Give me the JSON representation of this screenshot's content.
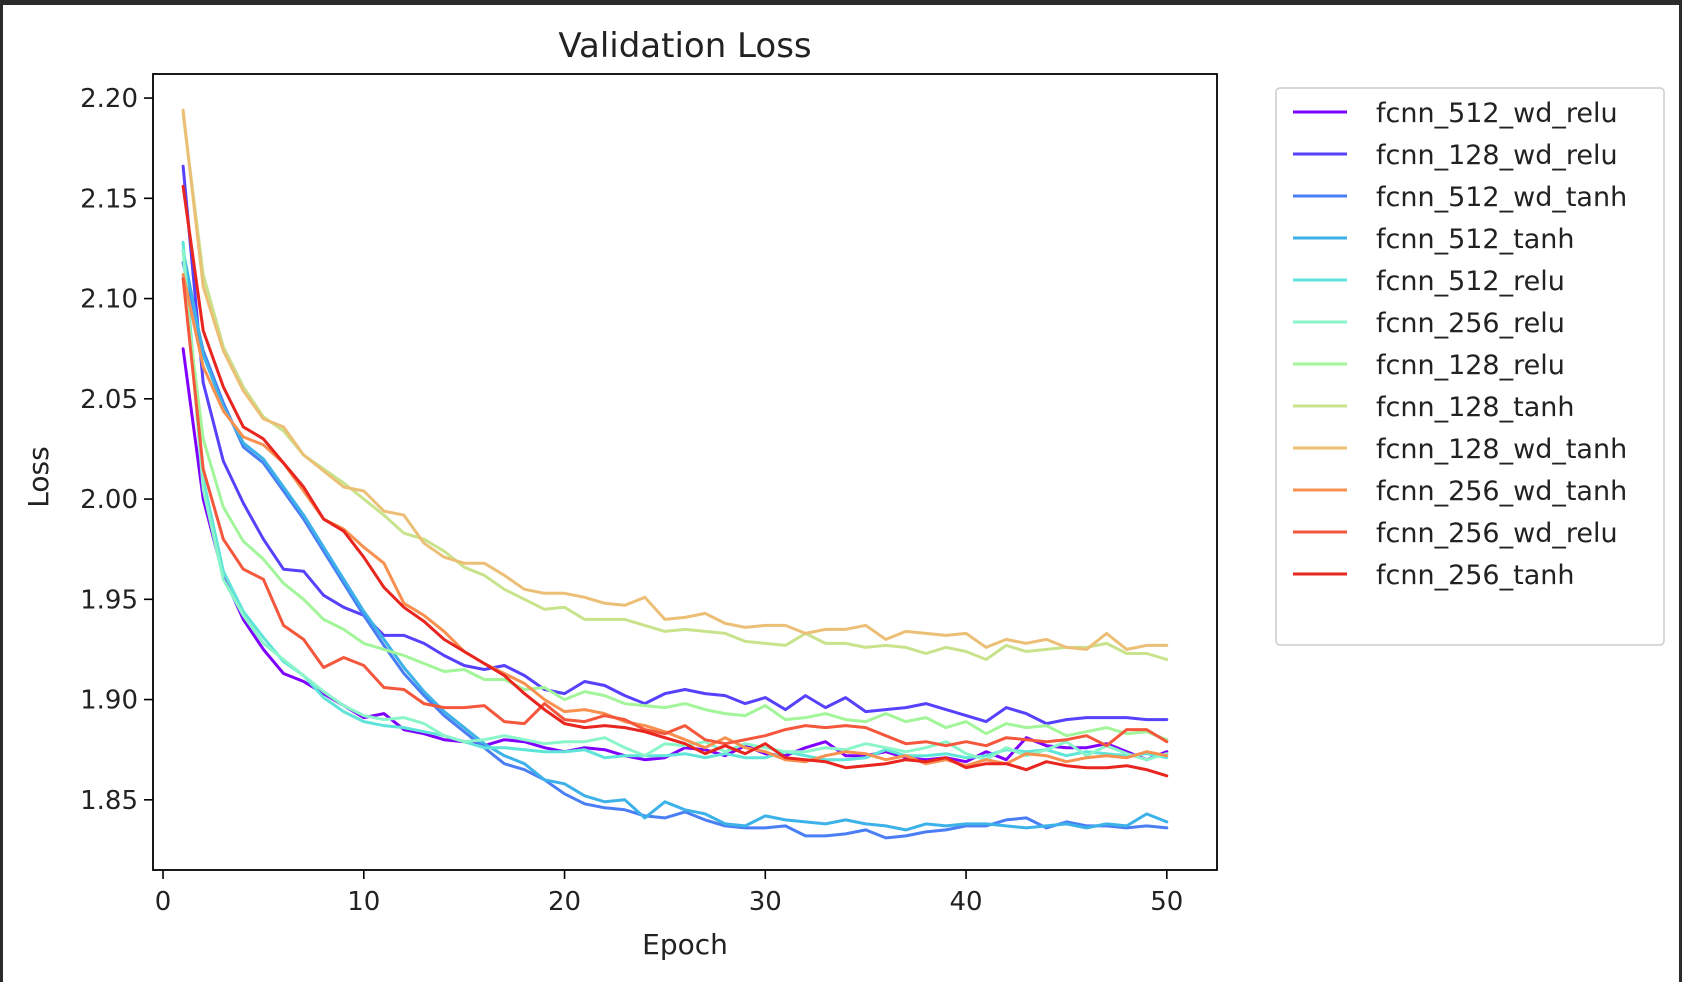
{
  "chart_data": {
    "type": "line",
    "title": "Validation Loss",
    "xlabel": "Epoch",
    "ylabel": "Loss",
    "xlim": [
      -0.5,
      52.5
    ],
    "ylim": [
      1.815,
      2.212
    ],
    "xticks": [
      0,
      10,
      20,
      30,
      40,
      50
    ],
    "yticks": [
      1.85,
      1.9,
      1.95,
      2.0,
      2.05,
      2.1,
      2.15,
      2.2
    ],
    "xtick_labels": [
      "0",
      "10",
      "20",
      "30",
      "40",
      "50"
    ],
    "ytick_labels": [
      "1.85",
      "1.90",
      "1.95",
      "2.00",
      "2.05",
      "2.10",
      "2.15",
      "2.20"
    ],
    "grid": false,
    "legend_position": "outside-right",
    "x": [
      1,
      2,
      3,
      4,
      5,
      6,
      7,
      8,
      9,
      10,
      11,
      12,
      13,
      14,
      15,
      16,
      17,
      18,
      19,
      20,
      21,
      22,
      23,
      24,
      25,
      26,
      27,
      28,
      29,
      30,
      31,
      32,
      33,
      34,
      35,
      36,
      37,
      38,
      39,
      40,
      41,
      42,
      43,
      44,
      45,
      46,
      47,
      48,
      49,
      50
    ],
    "series": [
      {
        "name": "fcnn_512_wd_relu",
        "color": "#7f00ff",
        "values": [
          2.075,
          2.0,
          1.962,
          1.94,
          1.925,
          1.913,
          1.909,
          1.903,
          1.897,
          1.891,
          1.893,
          1.885,
          1.883,
          1.88,
          1.879,
          1.877,
          1.88,
          1.879,
          1.876,
          1.874,
          1.876,
          1.875,
          1.872,
          1.87,
          1.871,
          1.876,
          1.875,
          1.872,
          1.877,
          1.873,
          1.872,
          1.876,
          1.879,
          1.872,
          1.872,
          1.874,
          1.871,
          1.87,
          1.871,
          1.869,
          1.874,
          1.87,
          1.881,
          1.877,
          1.876,
          1.876,
          1.878,
          1.874,
          1.87,
          1.874
        ]
      },
      {
        "name": "fcnn_128_wd_relu",
        "color": "#5641fd",
        "values": [
          2.166,
          2.058,
          2.019,
          1.998,
          1.98,
          1.965,
          1.964,
          1.952,
          1.946,
          1.942,
          1.932,
          1.932,
          1.928,
          1.922,
          1.917,
          1.915,
          1.917,
          1.912,
          1.905,
          1.903,
          1.909,
          1.907,
          1.902,
          1.898,
          1.903,
          1.905,
          1.903,
          1.902,
          1.898,
          1.901,
          1.895,
          1.902,
          1.896,
          1.901,
          1.894,
          1.895,
          1.896,
          1.898,
          1.895,
          1.892,
          1.889,
          1.896,
          1.893,
          1.888,
          1.89,
          1.891,
          1.891,
          1.891,
          1.89,
          1.89
        ]
      },
      {
        "name": "fcnn_512_wd_tanh",
        "color": "#4a7ef5",
        "values": [
          2.118,
          2.074,
          2.048,
          2.026,
          2.018,
          2.004,
          1.99,
          1.974,
          1.958,
          1.942,
          1.927,
          1.913,
          1.902,
          1.892,
          1.884,
          1.876,
          1.868,
          1.865,
          1.86,
          1.853,
          1.848,
          1.846,
          1.845,
          1.842,
          1.841,
          1.844,
          1.84,
          1.837,
          1.836,
          1.836,
          1.837,
          1.832,
          1.832,
          1.833,
          1.835,
          1.831,
          1.832,
          1.834,
          1.835,
          1.837,
          1.837,
          1.84,
          1.841,
          1.836,
          1.839,
          1.837,
          1.837,
          1.836,
          1.837,
          1.836
        ]
      },
      {
        "name": "fcnn_512_tanh",
        "color": "#3db2e8",
        "values": [
          2.124,
          2.072,
          2.046,
          2.028,
          2.02,
          2.006,
          1.992,
          1.976,
          1.96,
          1.944,
          1.93,
          1.916,
          1.904,
          1.894,
          1.886,
          1.878,
          1.872,
          1.868,
          1.86,
          1.858,
          1.852,
          1.849,
          1.85,
          1.841,
          1.849,
          1.845,
          1.843,
          1.838,
          1.837,
          1.842,
          1.84,
          1.839,
          1.838,
          1.84,
          1.838,
          1.837,
          1.835,
          1.838,
          1.837,
          1.838,
          1.838,
          1.837,
          1.836,
          1.837,
          1.838,
          1.836,
          1.838,
          1.837,
          1.843,
          1.839
        ]
      },
      {
        "name": "fcnn_512_relu",
        "color": "#5ee4d8",
        "values": [
          2.128,
          2.01,
          1.964,
          1.944,
          1.931,
          1.919,
          1.912,
          1.901,
          1.894,
          1.889,
          1.887,
          1.886,
          1.884,
          1.882,
          1.879,
          1.876,
          1.876,
          1.875,
          1.874,
          1.874,
          1.875,
          1.871,
          1.872,
          1.872,
          1.872,
          1.873,
          1.871,
          1.873,
          1.871,
          1.871,
          1.874,
          1.872,
          1.87,
          1.87,
          1.871,
          1.875,
          1.872,
          1.872,
          1.873,
          1.871,
          1.872,
          1.875,
          1.874,
          1.875,
          1.872,
          1.874,
          1.873,
          1.872,
          1.873,
          1.871
        ]
      },
      {
        "name": "fcnn_256_relu",
        "color": "#8af5c9",
        "values": [
          2.124,
          2.005,
          1.96,
          1.942,
          1.928,
          1.92,
          1.912,
          1.904,
          1.897,
          1.892,
          1.89,
          1.891,
          1.888,
          1.882,
          1.879,
          1.88,
          1.882,
          1.88,
          1.878,
          1.879,
          1.879,
          1.881,
          1.876,
          1.872,
          1.878,
          1.877,
          1.879,
          1.874,
          1.878,
          1.876,
          1.874,
          1.874,
          1.876,
          1.875,
          1.878,
          1.876,
          1.874,
          1.876,
          1.879,
          1.873,
          1.87,
          1.876,
          1.872,
          1.875,
          1.879,
          1.872,
          1.877,
          1.873,
          1.87,
          1.873
        ]
      },
      {
        "name": "fcnn_128_relu",
        "color": "#a3f59a",
        "values": [
          2.11,
          2.03,
          1.996,
          1.979,
          1.97,
          1.958,
          1.95,
          1.94,
          1.935,
          1.928,
          1.925,
          1.922,
          1.918,
          1.914,
          1.915,
          1.91,
          1.91,
          1.905,
          1.906,
          1.9,
          1.904,
          1.902,
          1.898,
          1.897,
          1.896,
          1.898,
          1.895,
          1.893,
          1.892,
          1.897,
          1.89,
          1.891,
          1.893,
          1.89,
          1.889,
          1.893,
          1.889,
          1.891,
          1.886,
          1.889,
          1.883,
          1.888,
          1.886,
          1.887,
          1.882,
          1.884,
          1.886,
          1.883,
          1.884,
          1.88
        ]
      },
      {
        "name": "fcnn_128_tanh",
        "color": "#c8e38c",
        "values": [
          2.192,
          2.112,
          2.076,
          2.056,
          2.041,
          2.034,
          2.022,
          2.015,
          2.008,
          2.0,
          1.992,
          1.983,
          1.98,
          1.974,
          1.966,
          1.962,
          1.955,
          1.95,
          1.945,
          1.946,
          1.94,
          1.94,
          1.94,
          1.937,
          1.934,
          1.935,
          1.934,
          1.933,
          1.929,
          1.928,
          1.927,
          1.933,
          1.928,
          1.928,
          1.926,
          1.927,
          1.926,
          1.923,
          1.926,
          1.924,
          1.92,
          1.927,
          1.924,
          1.925,
          1.926,
          1.926,
          1.928,
          1.923,
          1.923,
          1.92
        ]
      },
      {
        "name": "fcnn_128_wd_tanh",
        "color": "#ecbf76",
        "values": [
          2.194,
          2.106,
          2.074,
          2.054,
          2.04,
          2.036,
          2.022,
          2.014,
          2.006,
          2.004,
          1.994,
          1.992,
          1.978,
          1.971,
          1.968,
          1.968,
          1.962,
          1.955,
          1.953,
          1.953,
          1.951,
          1.948,
          1.947,
          1.951,
          1.94,
          1.941,
          1.943,
          1.938,
          1.936,
          1.937,
          1.937,
          1.933,
          1.935,
          1.935,
          1.937,
          1.93,
          1.934,
          1.933,
          1.932,
          1.933,
          1.926,
          1.93,
          1.928,
          1.93,
          1.926,
          1.925,
          1.933,
          1.925,
          1.927,
          1.927
        ]
      },
      {
        "name": "fcnn_256_wd_tanh",
        "color": "#f8904f",
        "values": [
          2.112,
          2.066,
          2.044,
          2.031,
          2.027,
          2.018,
          2.004,
          1.99,
          1.985,
          1.976,
          1.968,
          1.948,
          1.942,
          1.934,
          1.924,
          1.918,
          1.913,
          1.908,
          1.9,
          1.894,
          1.895,
          1.893,
          1.889,
          1.887,
          1.884,
          1.88,
          1.876,
          1.881,
          1.876,
          1.874,
          1.87,
          1.869,
          1.872,
          1.874,
          1.873,
          1.87,
          1.872,
          1.868,
          1.87,
          1.867,
          1.87,
          1.868,
          1.873,
          1.872,
          1.869,
          1.871,
          1.872,
          1.871,
          1.874,
          1.872
        ]
      },
      {
        "name": "fcnn_256_wd_relu",
        "color": "#f5573c",
        "values": [
          2.11,
          2.015,
          1.98,
          1.965,
          1.96,
          1.937,
          1.93,
          1.916,
          1.921,
          1.917,
          1.906,
          1.905,
          1.898,
          1.896,
          1.896,
          1.897,
          1.889,
          1.888,
          1.898,
          1.89,
          1.889,
          1.892,
          1.89,
          1.885,
          1.883,
          1.887,
          1.88,
          1.878,
          1.88,
          1.882,
          1.885,
          1.887,
          1.886,
          1.887,
          1.886,
          1.882,
          1.878,
          1.879,
          1.877,
          1.879,
          1.877,
          1.881,
          1.88,
          1.879,
          1.88,
          1.882,
          1.877,
          1.885,
          1.885,
          1.879
        ]
      },
      {
        "name": "fcnn_256_tanh",
        "color": "#e8251e",
        "values": [
          2.156,
          2.084,
          2.056,
          2.036,
          2.03,
          2.018,
          2.006,
          1.99,
          1.984,
          1.971,
          1.956,
          1.946,
          1.939,
          1.93,
          1.924,
          1.918,
          1.912,
          1.903,
          1.895,
          1.888,
          1.886,
          1.887,
          1.886,
          1.884,
          1.881,
          1.878,
          1.873,
          1.877,
          1.873,
          1.878,
          1.871,
          1.87,
          1.869,
          1.866,
          1.867,
          1.868,
          1.87,
          1.869,
          1.871,
          1.866,
          1.868,
          1.868,
          1.865,
          1.869,
          1.867,
          1.866,
          1.866,
          1.867,
          1.865,
          1.862
        ]
      }
    ]
  }
}
